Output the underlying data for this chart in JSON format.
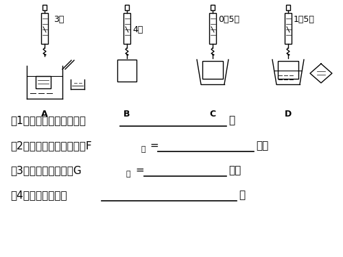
{
  "bg_color": "#ffffff",
  "line_color": "#000000",
  "readings": {
    "A": "3牛",
    "B": "4牛",
    "C": "0、5牛",
    "D": "1、5牛"
  },
  "labels": [
    "A",
    "B",
    "C",
    "D"
  ],
  "q1": "（1）实验的合理步骤是：",
  "q1_line": true,
  "q2a": "（2）计算物体受到的浮力F",
  "q2_sub": "浮",
  "q2b": "=",
  "q2_line2": true,
  "q2c": "牛。",
  "q3a": "（3）物体排开的液重G",
  "q3_sub": "液",
  "q3b": "=",
  "q3_line2": true,
  "q3c": "牛。",
  "q4": "（4）实验的结论：",
  "q4_line": true,
  "fig_width": 5.0,
  "fig_height": 3.75,
  "dpi": 100
}
